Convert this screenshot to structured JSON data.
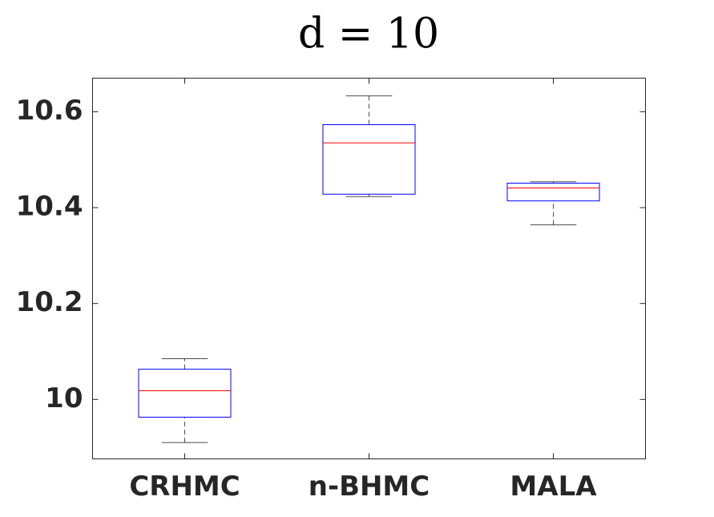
{
  "chart_data": {
    "type": "box",
    "title": "d = 10",
    "categories": [
      "CRHMC",
      "n-BHMC",
      "MALA"
    ],
    "boxes": [
      {
        "whisker_low": 9.91,
        "q1": 9.963,
        "median": 10.018,
        "q3": 10.063,
        "whisker_high": 10.085
      },
      {
        "whisker_low": 10.423,
        "q1": 10.428,
        "median": 10.535,
        "q3": 10.573,
        "whisker_high": 10.633
      },
      {
        "whisker_low": 10.364,
        "q1": 10.414,
        "median": 10.441,
        "q3": 10.451,
        "whisker_high": 10.454
      }
    ],
    "box_color": "#0000ff",
    "median_color": "#ff0000",
    "whisker_color": "#000000",
    "ylim": [
      9.876,
      10.67
    ],
    "yticks": [
      10,
      10.2,
      10.4,
      10.6
    ],
    "grid": false
  }
}
